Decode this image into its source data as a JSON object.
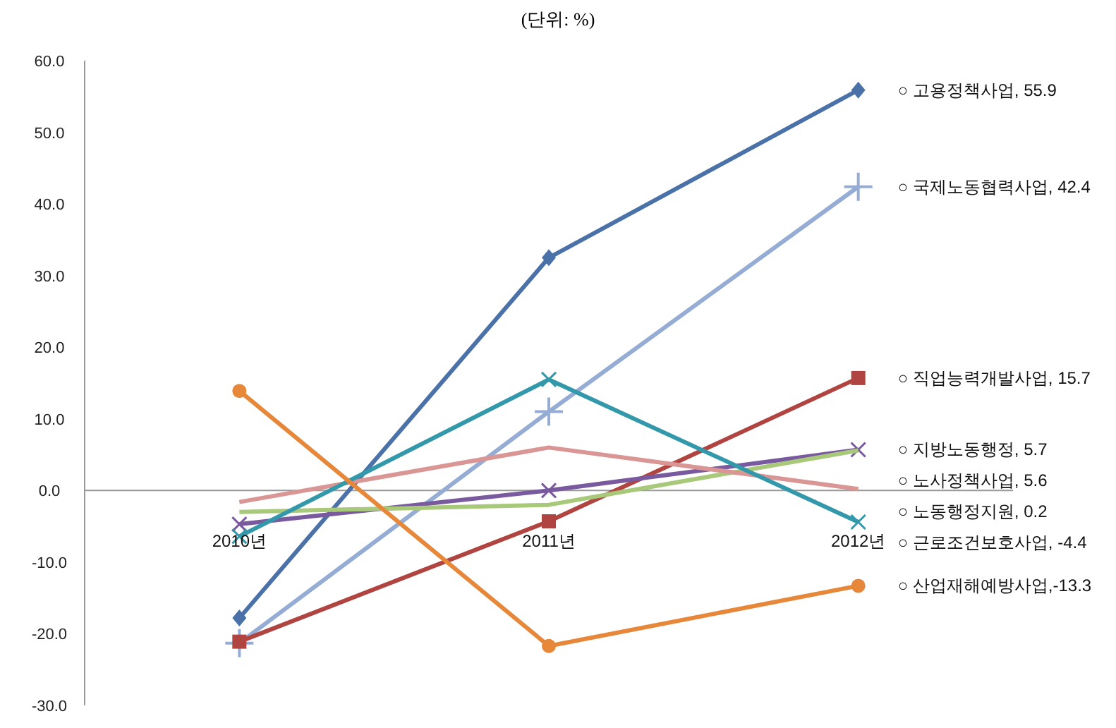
{
  "chart_data": {
    "type": "line",
    "title": "(단위: %)",
    "categories": [
      "2010년",
      "2011년",
      "2012년"
    ],
    "series": [
      {
        "color": "#4a72a8",
        "marker": "diamond",
        "values": [
          -17.8,
          32.5,
          55.9
        ]
      },
      {
        "color": "#95acd4",
        "marker": "plus",
        "values": [
          -21.3,
          11.0,
          42.4
        ]
      },
      {
        "color": "#b04440",
        "marker": "square",
        "values": [
          -21.1,
          -4.3,
          15.7
        ]
      },
      {
        "color": "#7a5a9e",
        "marker": "cross",
        "values": [
          -4.7,
          0.0,
          5.7
        ]
      },
      {
        "color": "#a9c97a",
        "marker": "none",
        "values": [
          -3.0,
          -2.0,
          5.6
        ]
      },
      {
        "color": "#d99694",
        "marker": "none",
        "values": [
          -1.6,
          6.0,
          0.2
        ]
      },
      {
        "color": "#3399aa",
        "marker": "cross",
        "values": [
          -6.4,
          15.5,
          -4.4
        ]
      },
      {
        "color": "#e6873a",
        "marker": "circle",
        "values": [
          13.9,
          -21.7,
          -13.3
        ]
      }
    ],
    "ylim": [
      -30,
      60
    ],
    "yticks": [
      {
        "value": -30,
        "label": "-30.0"
      },
      {
        "value": -20,
        "label": "-20.0"
      },
      {
        "value": -10,
        "label": "-10.0"
      },
      {
        "value": 0,
        "label": "0.0"
      },
      {
        "value": 10,
        "label": "10.0"
      },
      {
        "value": 20,
        "label": "20.0"
      },
      {
        "value": 30,
        "label": "30.0"
      },
      {
        "value": 40,
        "label": "40.0"
      },
      {
        "value": 50,
        "label": "50.0"
      },
      {
        "value": 60,
        "label": "60.0"
      }
    ],
    "grid": false,
    "annotations": [
      {
        "text": "○ 고용정책사업, 55.9",
        "x": "2012년",
        "y": 55.9
      },
      {
        "text": "○ 국제노동협력사업, 42.4",
        "x": "2012년",
        "y": 42.4
      },
      {
        "text": "○ 직업능력개발사업, 15.7",
        "x": "2012년",
        "y": 15.7
      },
      {
        "text": "○ 지방노동행정, 5.7",
        "x": "2012년",
        "y": 5.7
      },
      {
        "text": "○ 노사정책사업, 5.6",
        "x": "2012년",
        "y": 5.6
      },
      {
        "text": "○ 노동행정지원, 0.2",
        "x": "2012년",
        "y": 0.2
      },
      {
        "text": "○ 근로조건보호사업, -4.4",
        "x": "2012년",
        "y": -4.4
      },
      {
        "text": "○ 산업재해예방사업,-13.3",
        "x": "2012년",
        "y": -13.3
      }
    ]
  }
}
